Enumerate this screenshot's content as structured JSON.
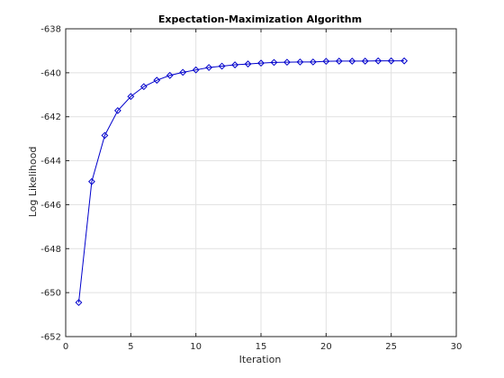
{
  "colors": {
    "background": "#ffffff",
    "series": "#0000cc",
    "grid": "#e1e1e1",
    "axes": "#262626"
  },
  "chart_data": {
    "type": "line",
    "title": "Expectation-Maximization Algorithm",
    "xlabel": "Iteration",
    "ylabel": "Log Likelihood",
    "xlim": [
      0,
      30
    ],
    "ylim": [
      -652,
      -638
    ],
    "xticks": [
      0,
      5,
      10,
      15,
      20,
      25,
      30
    ],
    "yticks": [
      -652,
      -650,
      -648,
      -646,
      -644,
      -642,
      -640,
      -638
    ],
    "xtick_labels": [
      "0",
      "5",
      "10",
      "15",
      "20",
      "25",
      "30"
    ],
    "ytick_labels": [
      "-652",
      "-650",
      "-648",
      "-646",
      "-644",
      "-642",
      "-640",
      "-638"
    ],
    "grid": true,
    "marker": "diamond",
    "series": [
      {
        "x": [
          1,
          2,
          3,
          4,
          5,
          6,
          7,
          8,
          9,
          10,
          11,
          12,
          13,
          14,
          15,
          16,
          17,
          18,
          19,
          20,
          21,
          22,
          23,
          24,
          25,
          26
        ],
        "values": [
          -650.45,
          -644.95,
          -642.85,
          -641.72,
          -641.08,
          -640.63,
          -640.34,
          -640.12,
          -639.98,
          -639.87,
          -639.76,
          -639.7,
          -639.64,
          -639.6,
          -639.56,
          -639.53,
          -639.52,
          -639.51,
          -639.51,
          -639.48,
          -639.47,
          -639.47,
          -639.47,
          -639.46,
          -639.46,
          -639.46
        ]
      }
    ]
  }
}
